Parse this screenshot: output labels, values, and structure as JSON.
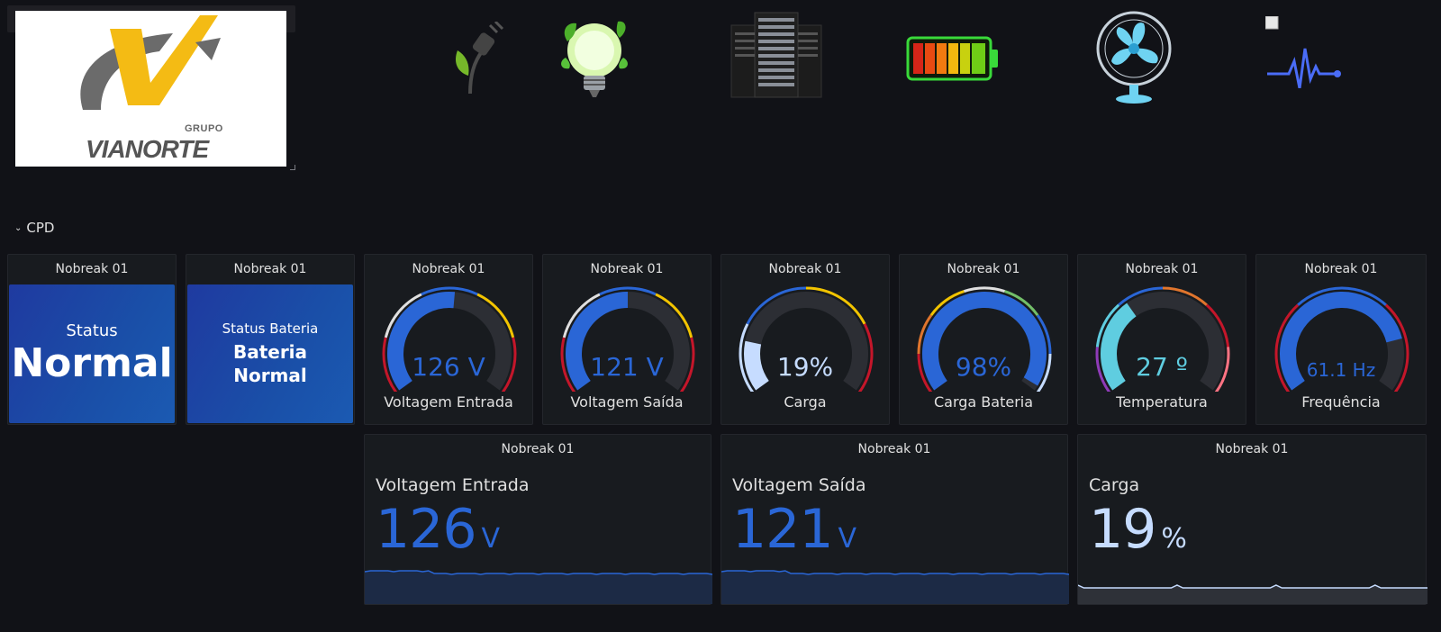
{
  "logo": {
    "grupo": "GRUPO",
    "name": "VIANORTE"
  },
  "top_icons": [
    {
      "name": "plug-leaf-icon"
    },
    {
      "name": "eco-bulb-icon"
    },
    {
      "name": "server-rack-icon"
    },
    {
      "name": "battery-icon"
    },
    {
      "name": "fan-icon"
    },
    {
      "name": "pulse-icon"
    }
  ],
  "row": {
    "title": "CPD"
  },
  "panels": {
    "status": {
      "title": "Nobreak 01",
      "label": "Status",
      "value": "Normal"
    },
    "status_bateria": {
      "title": "Nobreak 01",
      "label": "Status Bateria",
      "value_line1": "Bateria",
      "value_line2": "Normal"
    },
    "gauges": [
      {
        "title": "Nobreak 01",
        "value": "126 V",
        "label": "Voltagem Entrada",
        "fraction": 0.52,
        "color": "#2a66d6",
        "thresholds": [
          "#c4162a",
          "#e0e0e0",
          "#2a66d6",
          "#f2c400",
          "#c4162a"
        ]
      },
      {
        "title": "Nobreak 01",
        "value": "121 V",
        "label": "Voltagem Saída",
        "fraction": 0.5,
        "color": "#2a66d6",
        "thresholds": [
          "#c4162a",
          "#e0e0e0",
          "#2a66d6",
          "#f2c400",
          "#c4162a"
        ]
      },
      {
        "title": "Nobreak 01",
        "value": "19%",
        "label": "Carga",
        "fraction": 0.19,
        "color": "#c6dcff",
        "thresholds": [
          "#c6dcff",
          "#2a66d6",
          "#f2c400",
          "#c4162a"
        ]
      },
      {
        "title": "Nobreak 01",
        "value": "98%",
        "label": "Carga Bateria",
        "fraction": 0.98,
        "color": "#2a66d6",
        "thresholds": [
          "#c4162a",
          "#e0752d",
          "#f2c400",
          "#e0e0e0",
          "#73bf69",
          "#2a66d6",
          "#c6dcff"
        ]
      },
      {
        "title": "Nobreak 01",
        "value": "27 º",
        "label": "Temperatura",
        "fraction": 0.36,
        "color": "#5fcde0",
        "thresholds": [
          "#8f3bb8",
          "#5fcde0",
          "#2a66d6",
          "#e0752d",
          "#c4162a",
          "#ff7383"
        ]
      },
      {
        "title": "Nobreak 01",
        "value": "61.1 Hz",
        "label": "Frequência",
        "fraction": 0.8,
        "color": "#2a66d6",
        "thresholds": [
          "#c4162a",
          "#2a66d6",
          "#c4162a"
        ]
      }
    ],
    "timeseries": [
      {
        "title": "Nobreak 01",
        "label": "Voltagem Entrada",
        "value": "126",
        "unit": "V",
        "color": "#2a66d6"
      },
      {
        "title": "Nobreak 01",
        "label": "Voltagem Saída",
        "value": "121",
        "unit": "V",
        "color": "#2a66d6"
      },
      {
        "title": "Nobreak 01",
        "label": "Carga",
        "value": "19",
        "unit": "%",
        "color": "#c6dcff"
      }
    ]
  }
}
